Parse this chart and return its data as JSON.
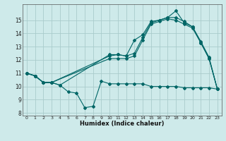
{
  "xlabel": "Humidex (Indice chaleur)",
  "bg_color": "#ceeaea",
  "grid_color": "#aacccc",
  "line_color": "#006666",
  "xlim": [
    -0.5,
    23.5
  ],
  "ylim": [
    7.8,
    16.2
  ],
  "xticks": [
    0,
    1,
    2,
    3,
    4,
    5,
    6,
    7,
    8,
    9,
    10,
    11,
    12,
    13,
    14,
    15,
    16,
    17,
    18,
    19,
    20,
    21,
    22,
    23
  ],
  "yticks": [
    8,
    9,
    10,
    11,
    12,
    13,
    14,
    15
  ],
  "line1_x": [
    0,
    1,
    2,
    3,
    4,
    5,
    6,
    7,
    8,
    9,
    10,
    11,
    12,
    13,
    14,
    15,
    16,
    17,
    18,
    19,
    20,
    21,
    22,
    23
  ],
  "line1_y": [
    11.0,
    10.8,
    10.3,
    10.3,
    10.1,
    9.6,
    9.5,
    8.4,
    8.5,
    10.4,
    10.2,
    10.2,
    10.2,
    10.2,
    10.2,
    10.0,
    10.0,
    10.0,
    10.0,
    9.9,
    9.9,
    9.9,
    9.9,
    9.8
  ],
  "line2_x": [
    0,
    1,
    2,
    3,
    4,
    10,
    11,
    12,
    13,
    14,
    15,
    16,
    17,
    18,
    19,
    20,
    21,
    22,
    23
  ],
  "line2_y": [
    11.0,
    10.8,
    10.3,
    10.3,
    10.1,
    12.4,
    12.4,
    12.3,
    13.5,
    13.9,
    14.9,
    15.0,
    15.2,
    15.7,
    14.8,
    14.5,
    13.3,
    12.1,
    9.8
  ],
  "line3_x": [
    0,
    1,
    2,
    3,
    10,
    11,
    12,
    13,
    14,
    15,
    16,
    17,
    18,
    19,
    20,
    21,
    22,
    23
  ],
  "line3_y": [
    11.0,
    10.8,
    10.3,
    10.3,
    12.3,
    12.4,
    12.3,
    12.5,
    13.7,
    14.8,
    15.0,
    15.2,
    15.2,
    14.9,
    14.5,
    13.4,
    12.2,
    9.8
  ],
  "line4_x": [
    0,
    1,
    2,
    3,
    10,
    11,
    12,
    13,
    14,
    15,
    16,
    17,
    18,
    19,
    20,
    21,
    22,
    23
  ],
  "line4_y": [
    11.0,
    10.8,
    10.3,
    10.3,
    12.1,
    12.1,
    12.1,
    12.3,
    13.5,
    14.7,
    14.9,
    15.1,
    15.0,
    14.7,
    14.4,
    13.3,
    12.1,
    9.8
  ]
}
